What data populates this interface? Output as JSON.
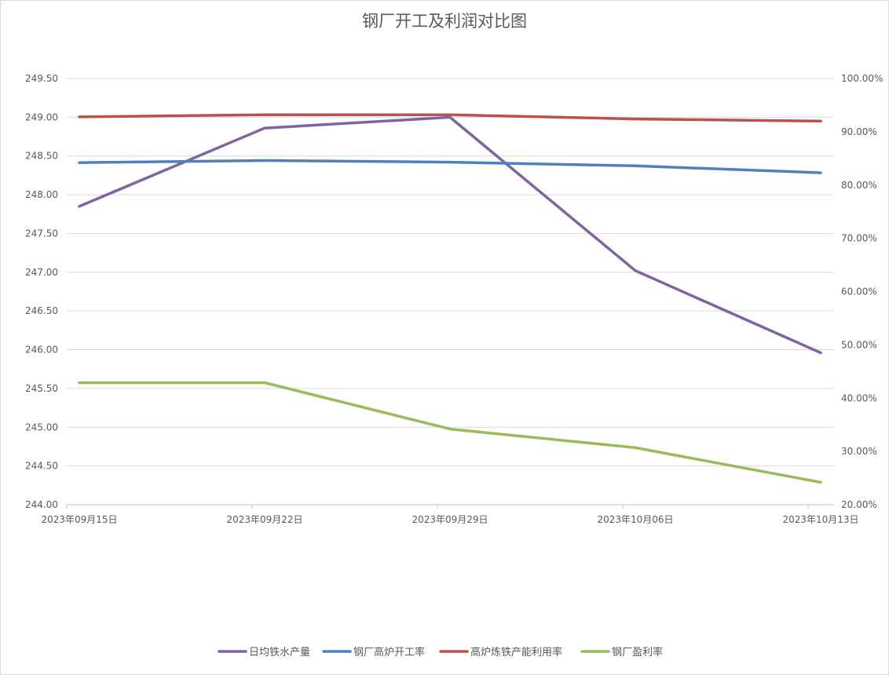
{
  "chart_data": {
    "type": "line",
    "title": "钢厂开工及利润对比图",
    "categories": [
      "2023年09月15日",
      "2023年09月22日",
      "2023年09月29日",
      "2023年10月06日",
      "2023年10月13日"
    ],
    "y_left": {
      "min": 244.0,
      "max": 249.5,
      "step": 0.5,
      "tick_labels": [
        "244.00",
        "244.50",
        "245.00",
        "245.50",
        "246.00",
        "246.50",
        "247.00",
        "247.50",
        "248.00",
        "248.50",
        "249.00",
        "249.50"
      ]
    },
    "y_right": {
      "min": 20,
      "max": 100,
      "step": 10,
      "tick_labels": [
        "20.00%",
        "30.00%",
        "40.00%",
        "50.00%",
        "60.00%",
        "70.00%",
        "80.00%",
        "90.00%",
        "100.00%"
      ]
    },
    "series": [
      {
        "name": "日均铁水产量",
        "axis": "left",
        "color": "#8064a2",
        "values": [
          247.85,
          248.86,
          249.0,
          247.02,
          245.96
        ]
      },
      {
        "name": "钢厂高炉开工率",
        "axis": "right",
        "color": "#4f81bd",
        "values": [
          84.2,
          84.6,
          84.3,
          83.6,
          82.3
        ]
      },
      {
        "name": "高炉炼铁产能利用率",
        "axis": "right",
        "color": "#c0504d",
        "values": [
          92.8,
          93.2,
          93.2,
          92.4,
          92.0
        ]
      },
      {
        "name": "钢厂盈利率",
        "axis": "right",
        "color": "#9bbb59",
        "values": [
          42.9,
          42.9,
          34.2,
          30.7,
          24.2
        ]
      }
    ],
    "grid": true,
    "legend_position": "bottom"
  }
}
